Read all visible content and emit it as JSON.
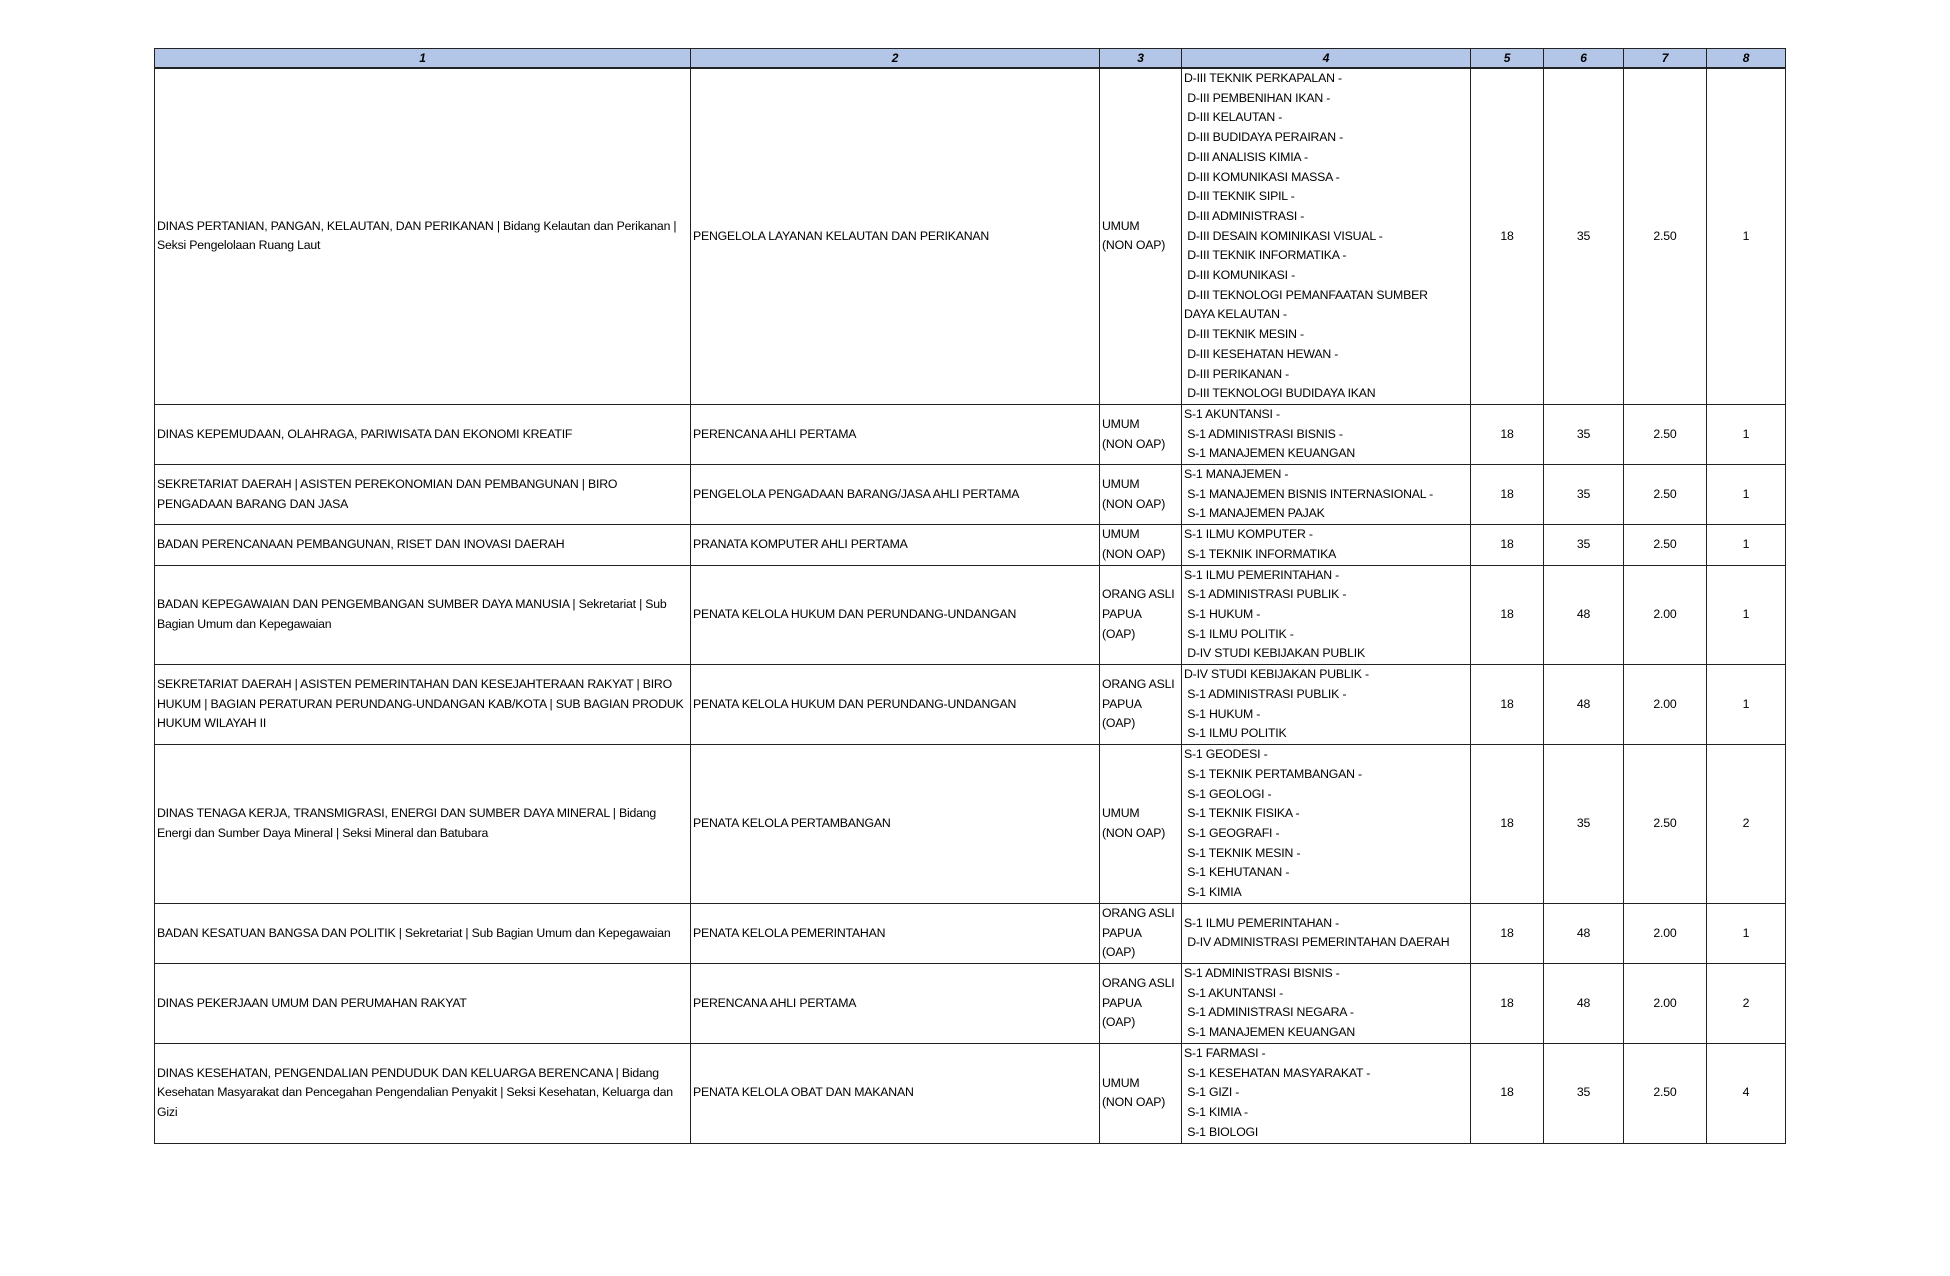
{
  "header": [
    "1",
    "2",
    "3",
    "4",
    "5",
    "6",
    "7",
    "8"
  ],
  "rows": [
    {
      "c1": "DINAS PERTANIAN, PANGAN, KELAUTAN, DAN PERIKANAN | Bidang Kelautan dan Perikanan | Seksi Pengelolaan Ruang Laut",
      "c2": "PENGELOLA LAYANAN KELAUTAN DAN PERIKANAN",
      "c3": [
        "UMUM",
        "(NON OAP)"
      ],
      "c4": [
        "D-III TEKNIK PERKAPALAN -",
        " D-III PEMBENIHAN IKAN -",
        " D-III KELAUTAN -",
        " D-III BUDIDAYA PERAIRAN -",
        " D-III ANALISIS KIMIA -",
        " D-III KOMUNIKASI MASSA -",
        " D-III TEKNIK SIPIL -",
        " D-III ADMINISTRASI -",
        " D-III DESAIN KOMINIKASI VISUAL -",
        " D-III TEKNIK INFORMATIKA -",
        " D-III KOMUNIKASI -",
        " D-III TEKNOLOGI PEMANFAATAN SUMBER",
        "DAYA KELAUTAN -",
        " D-III TEKNIK MESIN -",
        " D-III KESEHATAN HEWAN -",
        " D-III PERIKANAN -",
        " D-III TEKNOLOGI BUDIDAYA IKAN"
      ],
      "c5": "18",
      "c6": "35",
      "c7": "2.50",
      "c8": "1"
    },
    {
      "c1": "DINAS KEPEMUDAAN, OLAHRAGA, PARIWISATA DAN EKONOMI KREATIF",
      "c2": "PERENCANA AHLI PERTAMA",
      "c3": [
        "UMUM",
        "(NON OAP)"
      ],
      "c4": [
        "S-1 AKUNTANSI -",
        " S-1 ADMINISTRASI BISNIS -",
        " S-1 MANAJEMEN KEUANGAN"
      ],
      "c5": "18",
      "c6": "35",
      "c7": "2.50",
      "c8": "1"
    },
    {
      "c1": "SEKRETARIAT DAERAH | ASISTEN PEREKONOMIAN DAN PEMBANGUNAN | BIRO PENGADAAN BARANG DAN JASA",
      "c2": "PENGELOLA PENGADAAN BARANG/JASA AHLI PERTAMA",
      "c3": [
        "UMUM",
        "(NON OAP)"
      ],
      "c4": [
        "S-1 MANAJEMEN -",
        " S-1 MANAJEMEN BISNIS INTERNASIONAL -",
        " S-1 MANAJEMEN PAJAK"
      ],
      "c5": "18",
      "c6": "35",
      "c7": "2.50",
      "c8": "1"
    },
    {
      "c1": "BADAN PERENCANAAN PEMBANGUNAN, RISET DAN INOVASI DAERAH",
      "c2": "PRANATA KOMPUTER AHLI PERTAMA",
      "c3": [
        "UMUM",
        "(NON OAP)"
      ],
      "c4": [
        "S-1 ILMU KOMPUTER -",
        " S-1 TEKNIK INFORMATIKA"
      ],
      "c5": "18",
      "c6": "35",
      "c7": "2.50",
      "c8": "1"
    },
    {
      "c1": "BADAN KEPEGAWAIAN DAN PENGEMBANGAN SUMBER DAYA MANUSIA | Sekretariat | Sub Bagian Umum dan Kepegawaian",
      "c2": "PENATA KELOLA HUKUM DAN PERUNDANG-UNDANGAN",
      "c3": [
        "ORANG ASLI",
        "PAPUA",
        "(OAP)"
      ],
      "c4": [
        "S-1 ILMU PEMERINTAHAN -",
        " S-1 ADMINISTRASI PUBLIK -",
        " S-1 HUKUM -",
        " S-1 ILMU POLITIK -",
        " D-IV STUDI KEBIJAKAN PUBLIK"
      ],
      "c5": "18",
      "c6": "48",
      "c7": "2.00",
      "c8": "1"
    },
    {
      "c1": "SEKRETARIAT DAERAH | ASISTEN PEMERINTAHAN DAN KESEJAHTERAAN RAKYAT | BIRO HUKUM | BAGIAN PERATURAN PERUNDANG-UNDANGAN KAB/KOTA | SUB BAGIAN PRODUK HUKUM WILAYAH II",
      "c2": "PENATA KELOLA HUKUM DAN PERUNDANG-UNDANGAN",
      "c3": [
        "ORANG ASLI",
        "PAPUA",
        "(OAP)"
      ],
      "c4": [
        "D-IV STUDI KEBIJAKAN PUBLIK -",
        " S-1 ADMINISTRASI PUBLIK -",
        " S-1 HUKUM -",
        " S-1 ILMU POLITIK"
      ],
      "c5": "18",
      "c6": "48",
      "c7": "2.00",
      "c8": "1"
    },
    {
      "c1": "DINAS TENAGA KERJA, TRANSMIGRASI, ENERGI DAN SUMBER DAYA MINERAL | Bidang Energi dan Sumber Daya Mineral | Seksi Mineral dan Batubara",
      "c2": "PENATA KELOLA PERTAMBANGAN",
      "c3": [
        "UMUM",
        "(NON OAP)"
      ],
      "c4": [
        "S-1 GEODESI -",
        " S-1 TEKNIK PERTAMBANGAN -",
        " S-1 GEOLOGI -",
        " S-1 TEKNIK FISIKA -",
        " S-1 GEOGRAFI -",
        " S-1 TEKNIK MESIN -",
        " S-1 KEHUTANAN -",
        " S-1 KIMIA"
      ],
      "c5": "18",
      "c6": "35",
      "c7": "2.50",
      "c8": "2"
    },
    {
      "c1": "BADAN KESATUAN BANGSA DAN POLITIK | Sekretariat | Sub Bagian Umum dan Kepegawaian",
      "c2": "PENATA KELOLA PEMERINTAHAN",
      "c3": [
        "ORANG ASLI",
        "PAPUA",
        "(OAP)"
      ],
      "c4": [
        "S-1 ILMU PEMERINTAHAN -",
        " D-IV ADMINISTRASI PEMERINTAHAN DAERAH"
      ],
      "c5": "18",
      "c6": "48",
      "c7": "2.00",
      "c8": "1"
    },
    {
      "c1": "DINAS PEKERJAAN UMUM DAN PERUMAHAN RAKYAT",
      "c2": "PERENCANA AHLI PERTAMA",
      "c3": [
        "ORANG ASLI",
        "PAPUA",
        "(OAP)"
      ],
      "c4": [
        "S-1 ADMINISTRASI BISNIS -",
        " S-1 AKUNTANSI -",
        " S-1 ADMINISTRASI NEGARA -",
        " S-1 MANAJEMEN KEUANGAN"
      ],
      "c5": "18",
      "c6": "48",
      "c7": "2.00",
      "c8": "2"
    },
    {
      "c1": "DINAS KESEHATAN, PENGENDALIAN PENDUDUK DAN KELUARGA BERENCANA | Bidang Kesehatan Masyarakat dan Pencegahan Pengendalian Penyakit | Seksi Kesehatan, Keluarga dan Gizi",
      "c2": "PENATA KELOLA OBAT DAN MAKANAN",
      "c3": [
        "UMUM",
        "(NON OAP)"
      ],
      "c4": [
        "S-1 FARMASI -",
        " S-1 KESEHATAN MASYARAKAT -",
        " S-1 GIZI -",
        " S-1 KIMIA -",
        " S-1 BIOLOGI"
      ],
      "c5": "18",
      "c6": "35",
      "c7": "2.50",
      "c8": "4"
    }
  ],
  "colors": {
    "header_bg": "#b4c6e7",
    "border": "#222222"
  }
}
